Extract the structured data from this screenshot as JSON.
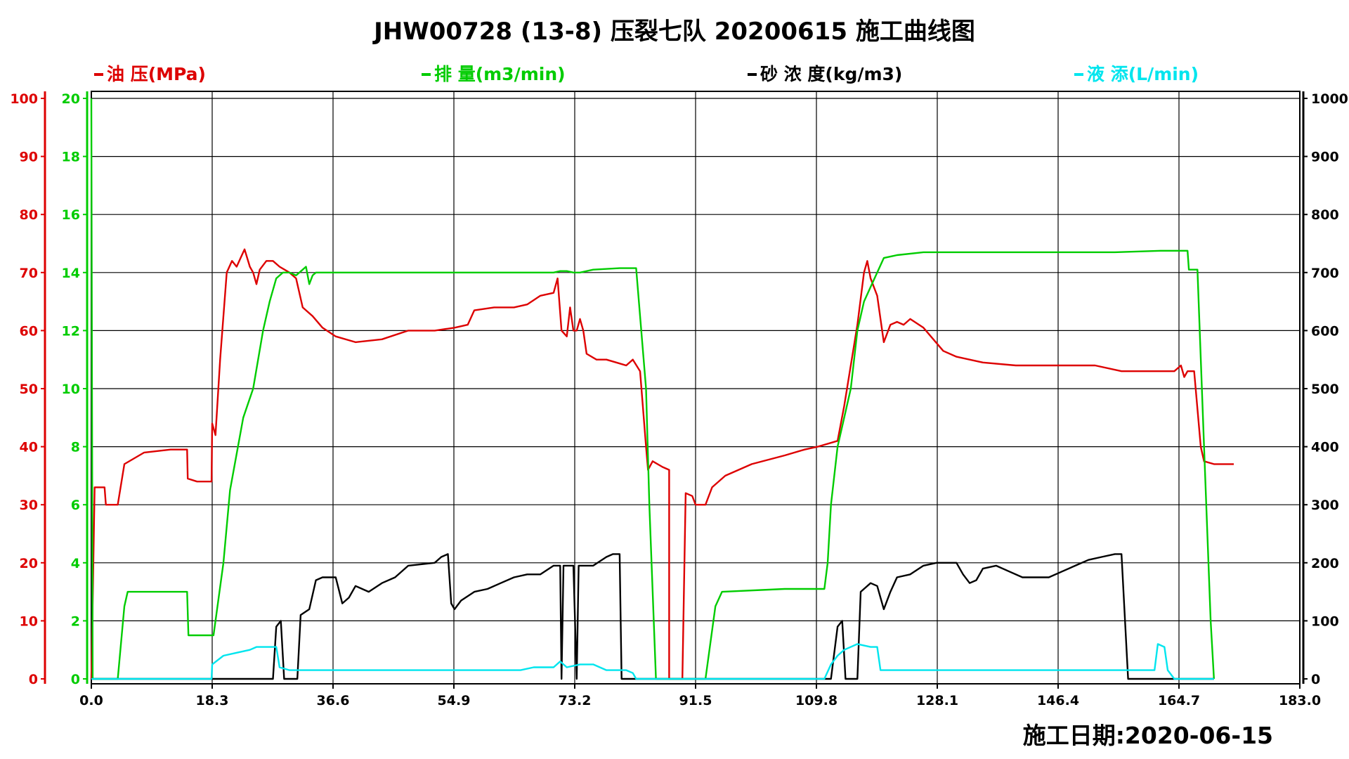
{
  "chart_data": {
    "type": "line",
    "title": "JHW00728 (13-8) 压裂七队 20200615 施工曲线图",
    "date_label": "施工日期:2020-06-15",
    "x_ticks": [
      "0.0",
      "18.3",
      "36.6",
      "54.9",
      "73.2",
      "91.5",
      "109.8",
      "128.1",
      "146.4",
      "164.7",
      "183.0"
    ],
    "xlim": [
      0,
      183
    ],
    "grid": true,
    "axes": {
      "pressure": {
        "range": [
          0,
          100
        ],
        "ticks": [
          "0",
          "10",
          "20",
          "30",
          "40",
          "50",
          "60",
          "70",
          "80",
          "90",
          "100"
        ],
        "color": "#dd0000"
      },
      "rate": {
        "range": [
          0,
          20
        ],
        "ticks": [
          "0",
          "2",
          "4",
          "6",
          "8",
          "10",
          "12",
          "14",
          "16",
          "18",
          "20"
        ],
        "color": "#00cc00"
      },
      "sand": {
        "range": [
          0,
          1000
        ],
        "ticks": [
          "0",
          "100",
          "200",
          "300",
          "400",
          "500",
          "600",
          "700",
          "800",
          "900",
          "1000"
        ],
        "color": "#000000"
      }
    },
    "series": [
      {
        "name": "油  压(MPa)",
        "axis": "pressure",
        "color": "#dd0000",
        "points": [
          [
            0,
            0
          ],
          [
            0.5,
            33
          ],
          [
            2,
            33
          ],
          [
            2.2,
            30
          ],
          [
            4,
            30
          ],
          [
            5,
            37
          ],
          [
            8,
            39
          ],
          [
            12,
            39.5
          ],
          [
            14.5,
            39.5
          ],
          [
            14.6,
            34.5
          ],
          [
            16,
            34
          ],
          [
            18.2,
            34
          ],
          [
            18.3,
            44
          ],
          [
            18.8,
            42
          ],
          [
            19.5,
            55
          ],
          [
            20.5,
            70
          ],
          [
            21.3,
            72
          ],
          [
            22,
            71
          ],
          [
            22.8,
            73
          ],
          [
            23.2,
            74
          ],
          [
            24,
            71
          ],
          [
            24.5,
            70
          ],
          [
            25,
            68
          ],
          [
            25.5,
            70.5
          ],
          [
            26.5,
            72
          ],
          [
            27.5,
            72
          ],
          [
            28.5,
            71
          ],
          [
            30,
            70
          ],
          [
            31,
            69
          ],
          [
            32,
            64
          ],
          [
            33.5,
            62.5
          ],
          [
            35,
            60.5
          ],
          [
            37,
            59
          ],
          [
            40,
            58
          ],
          [
            44,
            58.5
          ],
          [
            48,
            60
          ],
          [
            52,
            60
          ],
          [
            55,
            60.5
          ],
          [
            57,
            61
          ],
          [
            58,
            63.5
          ],
          [
            61,
            64
          ],
          [
            64,
            64
          ],
          [
            66,
            64.5
          ],
          [
            68,
            66
          ],
          [
            70,
            66.5
          ],
          [
            70.6,
            69
          ],
          [
            71.2,
            60
          ],
          [
            72,
            59
          ],
          [
            72.5,
            64
          ],
          [
            73,
            60
          ],
          [
            73.5,
            60
          ],
          [
            74,
            62
          ],
          [
            74.5,
            60
          ],
          [
            75,
            56
          ],
          [
            76.5,
            55
          ],
          [
            78,
            55
          ],
          [
            79.5,
            54.5
          ],
          [
            81,
            54
          ],
          [
            82,
            55
          ],
          [
            83.1,
            53
          ],
          [
            84,
            40
          ],
          [
            84.3,
            36
          ],
          [
            85,
            37.5
          ],
          [
            86.5,
            36.5
          ],
          [
            87.5,
            36
          ],
          [
            87.5,
            0
          ],
          [
            89.5,
            0
          ],
          [
            90,
            32
          ],
          [
            91,
            31.5
          ],
          [
            91.5,
            30
          ],
          [
            93,
            30
          ],
          [
            94,
            33
          ],
          [
            96,
            35
          ],
          [
            100,
            37
          ],
          [
            105,
            38.5
          ],
          [
            108,
            39.5
          ],
          [
            110,
            40
          ],
          [
            113,
            41
          ],
          [
            114,
            47
          ],
          [
            116,
            61
          ],
          [
            117,
            70
          ],
          [
            117.5,
            72
          ],
          [
            118,
            69
          ],
          [
            119,
            66
          ],
          [
            119.5,
            62
          ],
          [
            120,
            58
          ],
          [
            121,
            61
          ],
          [
            122,
            61.5
          ],
          [
            123,
            61
          ],
          [
            124,
            62
          ],
          [
            126,
            60.5
          ],
          [
            129,
            56.5
          ],
          [
            131,
            55.5
          ],
          [
            135,
            54.5
          ],
          [
            140,
            54
          ],
          [
            148,
            54
          ],
          [
            152,
            54
          ],
          [
            156,
            53
          ],
          [
            160,
            53
          ],
          [
            164,
            53
          ],
          [
            165,
            54
          ],
          [
            165.5,
            52
          ],
          [
            166,
            53
          ],
          [
            167,
            53
          ],
          [
            168,
            40
          ],
          [
            168.5,
            37.5
          ],
          [
            170,
            37
          ],
          [
            173,
            37
          ]
        ]
      },
      {
        "name": "排  量(m3/min)",
        "axis": "rate",
        "color": "#00cc00",
        "points": [
          [
            0,
            20
          ],
          [
            0.2,
            0
          ],
          [
            4,
            0
          ],
          [
            5,
            2.5
          ],
          [
            5.5,
            3
          ],
          [
            8,
            3
          ],
          [
            14.5,
            3
          ],
          [
            14.7,
            1.5
          ],
          [
            18.5,
            1.5
          ],
          [
            20,
            4
          ],
          [
            21,
            6.5
          ],
          [
            23,
            9
          ],
          [
            24.5,
            10
          ],
          [
            26,
            12
          ],
          [
            27,
            13
          ],
          [
            28,
            13.8
          ],
          [
            29,
            14
          ],
          [
            30,
            14
          ],
          [
            31,
            13.9
          ],
          [
            32,
            14.1
          ],
          [
            32.5,
            14.2
          ],
          [
            33,
            13.6
          ],
          [
            33.5,
            13.9
          ],
          [
            34,
            14
          ],
          [
            40,
            14
          ],
          [
            50,
            14
          ],
          [
            60,
            14
          ],
          [
            70,
            14
          ],
          [
            71,
            14.05
          ],
          [
            72,
            14.05
          ],
          [
            73,
            14
          ],
          [
            74,
            14
          ],
          [
            76,
            14.1
          ],
          [
            80,
            14.15
          ],
          [
            82.5,
            14.15
          ],
          [
            84,
            10
          ],
          [
            84.5,
            6
          ],
          [
            85,
            3
          ],
          [
            85.5,
            0
          ],
          [
            93,
            0
          ],
          [
            94.5,
            2.5
          ],
          [
            95.5,
            3
          ],
          [
            105,
            3.1
          ],
          [
            111,
            3.1
          ],
          [
            111.5,
            4
          ],
          [
            112,
            6
          ],
          [
            113,
            8
          ],
          [
            114,
            9
          ],
          [
            115,
            10
          ],
          [
            116,
            12
          ],
          [
            117,
            13
          ],
          [
            118,
            13.5
          ],
          [
            119,
            14
          ],
          [
            120,
            14.5
          ],
          [
            122,
            14.6
          ],
          [
            126,
            14.7
          ],
          [
            135,
            14.7
          ],
          [
            145,
            14.7
          ],
          [
            155,
            14.7
          ],
          [
            162,
            14.75
          ],
          [
            166,
            14.75
          ],
          [
            166.2,
            14.1
          ],
          [
            167.5,
            14.1
          ],
          [
            168.5,
            8
          ],
          [
            169.5,
            2
          ],
          [
            170,
            0
          ]
        ]
      },
      {
        "name": "砂  浓  度(kg/m3)",
        "axis": "sand",
        "color": "#000000",
        "points": [
          [
            0,
            0
          ],
          [
            27.5,
            0
          ],
          [
            28,
            90
          ],
          [
            28.7,
            100
          ],
          [
            29.2,
            0
          ],
          [
            31.2,
            0
          ],
          [
            31.7,
            110
          ],
          [
            33,
            120
          ],
          [
            34,
            170
          ],
          [
            35,
            175
          ],
          [
            37,
            175
          ],
          [
            38,
            130
          ],
          [
            39,
            140
          ],
          [
            40,
            160
          ],
          [
            42,
            150
          ],
          [
            44,
            165
          ],
          [
            46,
            175
          ],
          [
            48,
            195
          ],
          [
            52,
            200
          ],
          [
            53,
            210
          ],
          [
            54,
            215
          ],
          [
            54.5,
            130
          ],
          [
            55,
            120
          ],
          [
            56,
            135
          ],
          [
            58,
            150
          ],
          [
            60,
            155
          ],
          [
            62,
            165
          ],
          [
            64,
            175
          ],
          [
            66,
            180
          ],
          [
            68,
            180
          ],
          [
            70,
            195
          ],
          [
            71,
            195
          ],
          [
            71.2,
            0
          ],
          [
            71.5,
            195
          ],
          [
            73,
            195
          ],
          [
            73.5,
            0
          ],
          [
            73.8,
            195
          ],
          [
            76,
            195
          ],
          [
            78,
            210
          ],
          [
            79,
            215
          ],
          [
            80,
            215
          ],
          [
            80.3,
            0
          ],
          [
            83,
            0
          ],
          [
            112,
            0
          ],
          [
            113,
            90
          ],
          [
            113.7,
            100
          ],
          [
            114.2,
            0
          ],
          [
            116,
            0
          ],
          [
            116.5,
            150
          ],
          [
            118,
            165
          ],
          [
            119,
            160
          ],
          [
            120,
            120
          ],
          [
            121,
            150
          ],
          [
            122,
            175
          ],
          [
            124,
            180
          ],
          [
            126,
            195
          ],
          [
            128,
            200
          ],
          [
            131,
            200
          ],
          [
            132,
            180
          ],
          [
            133,
            165
          ],
          [
            134,
            170
          ],
          [
            135,
            190
          ],
          [
            137,
            195
          ],
          [
            139,
            185
          ],
          [
            141,
            175
          ],
          [
            143,
            175
          ],
          [
            145,
            175
          ],
          [
            147,
            185
          ],
          [
            149,
            195
          ],
          [
            151,
            205
          ],
          [
            153,
            210
          ],
          [
            155,
            215
          ],
          [
            156,
            215
          ],
          [
            157,
            0
          ],
          [
            170,
            0
          ]
        ]
      },
      {
        "name": "液  添(L/min)",
        "axis": "sand",
        "color": "#00e5ee",
        "points": [
          [
            0,
            0
          ],
          [
            18.2,
            0
          ],
          [
            18.3,
            25
          ],
          [
            20,
            40
          ],
          [
            22,
            45
          ],
          [
            24,
            50
          ],
          [
            25,
            55
          ],
          [
            28,
            55
          ],
          [
            28.5,
            20
          ],
          [
            30,
            15
          ],
          [
            40,
            15
          ],
          [
            55,
            15
          ],
          [
            65,
            15
          ],
          [
            67,
            20
          ],
          [
            70,
            20
          ],
          [
            71,
            30
          ],
          [
            72,
            20
          ],
          [
            74,
            25
          ],
          [
            76,
            25
          ],
          [
            78,
            15
          ],
          [
            81,
            15
          ],
          [
            82,
            10
          ],
          [
            82.5,
            0
          ],
          [
            111,
            0
          ],
          [
            112,
            25
          ],
          [
            113,
            40
          ],
          [
            114,
            50
          ],
          [
            116,
            60
          ],
          [
            118,
            55
          ],
          [
            119,
            55
          ],
          [
            119.5,
            15
          ],
          [
            125,
            15
          ],
          [
            140,
            15
          ],
          [
            155,
            15
          ],
          [
            161,
            15
          ],
          [
            161.5,
            60
          ],
          [
            162.5,
            55
          ],
          [
            163,
            15
          ],
          [
            164,
            0
          ],
          [
            170,
            0
          ]
        ]
      }
    ]
  }
}
